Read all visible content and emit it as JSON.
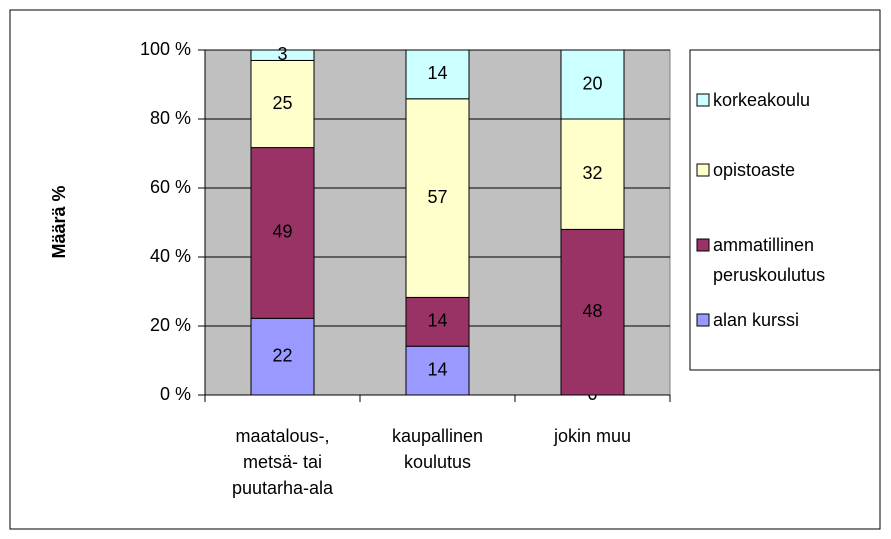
{
  "chart_data": {
    "type": "bar",
    "stacked": "percent",
    "categories": [
      "maatalous-, metsä- tai puutarha-ala",
      "kaupallinen koulutus",
      "jokin muu"
    ],
    "series": [
      {
        "name": "alan kurssi",
        "color": "#9999ff",
        "values": [
          22,
          14,
          0
        ]
      },
      {
        "name": "ammatillinen peruskoulutus",
        "color": "#993366",
        "values": [
          49,
          14,
          48
        ]
      },
      {
        "name": "opistoaste",
        "color": "#ffffcc",
        "values": [
          25,
          57,
          32
        ]
      },
      {
        "name": "korkeakoulu",
        "color": "#ccffff",
        "values": [
          3,
          14,
          20
        ]
      }
    ],
    "y_label": "Määrä %",
    "ylim": [
      0,
      100
    ],
    "yticks": [
      {
        "value": 0,
        "label": "0 %"
      },
      {
        "value": 20,
        "label": "20 %"
      },
      {
        "value": 40,
        "label": "40 %"
      },
      {
        "value": 60,
        "label": "60 %"
      },
      {
        "value": 80,
        "label": "80 %"
      },
      {
        "value": 100,
        "label": "100 %"
      }
    ],
    "grid": true,
    "plot_background": "#c0c0c0",
    "legend": "right"
  }
}
